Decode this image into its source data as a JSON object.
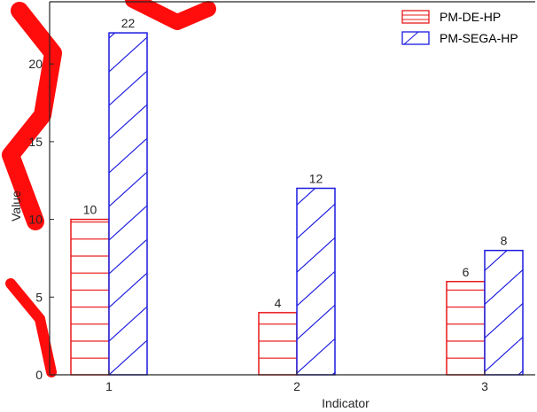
{
  "chart_data": {
    "type": "bar",
    "xlabel": "Indicator",
    "ylabel": "Value",
    "categories": [
      "1",
      "2",
      "3"
    ],
    "ylim": [
      0,
      24
    ],
    "yticks": [
      0,
      5,
      10,
      15,
      20
    ],
    "grid": false,
    "legend_position": "top-right",
    "series": [
      {
        "name": "PM-DE-HP",
        "values": [
          10,
          4,
          6
        ],
        "color": "#e8191a",
        "hatch": "horizontal"
      },
      {
        "name": "PM-SEGA-HP",
        "values": [
          22,
          12,
          8
        ],
        "color": "#1a1ae0",
        "hatch": "diagonal"
      }
    ]
  }
}
